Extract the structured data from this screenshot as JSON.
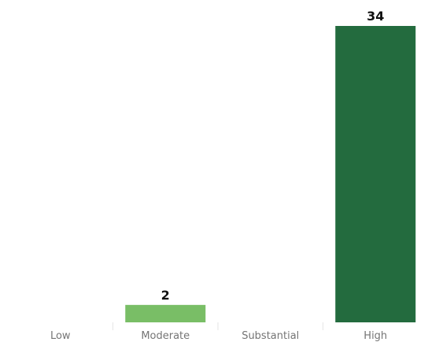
{
  "chart_data": {
    "type": "bar",
    "categories": [
      "Low",
      "Moderate",
      "Substantial",
      "High"
    ],
    "values": [
      0,
      2,
      0,
      34
    ],
    "data_labels": [
      "",
      "2",
      "",
      "34"
    ],
    "ylim": [
      0,
      34
    ],
    "grid": false,
    "colors": [
      "#79be66",
      "#79be66",
      "#79be66",
      "#236b3e"
    ],
    "label_color": "#757575"
  }
}
